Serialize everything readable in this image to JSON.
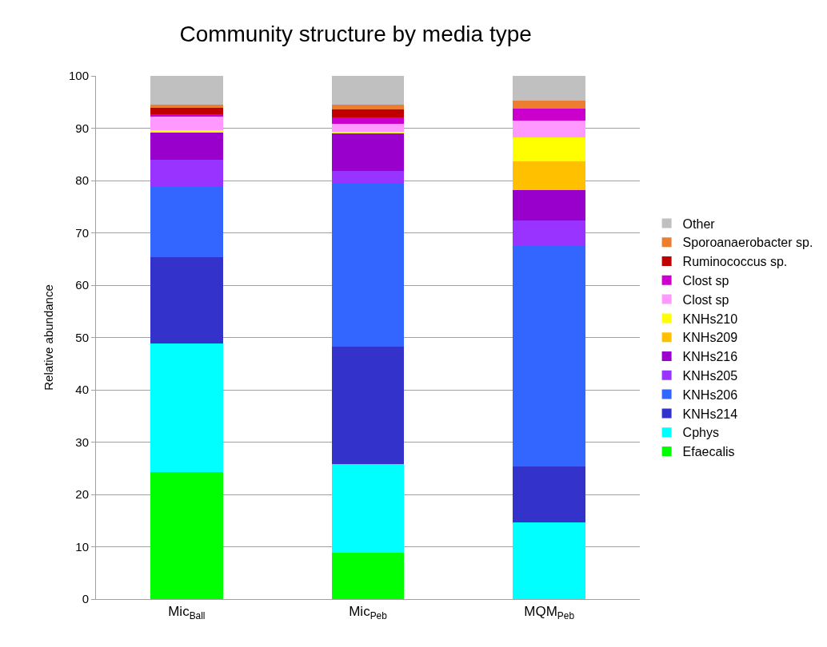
{
  "chart_data": {
    "type": "bar",
    "stacked": true,
    "title": "Community structure by media type",
    "ylabel": "Relative abundance",
    "categories": [
      "Mic$_{Ball}$",
      "Mic$_{Peb}$",
      "MQM$_{Peb}$"
    ],
    "ylim": [
      0,
      100
    ],
    "yticks": [
      0,
      10,
      20,
      30,
      40,
      50,
      60,
      70,
      80,
      90,
      100
    ],
    "grid": "y",
    "legend": "right",
    "series": [
      {
        "name": "Efaecalis",
        "color": "#00ff00",
        "values": [
          24.2,
          8.9,
          0
        ]
      },
      {
        "name": "Cphys",
        "color": "#00ffff",
        "values": [
          24.7,
          16.9,
          14.6
        ]
      },
      {
        "name": "KNHs214",
        "color": "#3333cc",
        "values": [
          16.4,
          22.5,
          10.8
        ]
      },
      {
        "name": "KNHs206",
        "color": "#3366ff",
        "values": [
          13.5,
          31.1,
          42.2
        ]
      },
      {
        "name": "KNHs205",
        "color": "#9933ff",
        "values": [
          5.1,
          2.5,
          4.8
        ]
      },
      {
        "name": "KNHs216",
        "color": "#9900cc",
        "values": [
          5.2,
          7.2,
          5.8
        ]
      },
      {
        "name": "KNHs209",
        "color": "#ffc000",
        "values": [
          0,
          0,
          5.5
        ]
      },
      {
        "name": "KNHs210",
        "color": "#ffff00",
        "values": [
          0.5,
          0.2,
          4.6
        ]
      },
      {
        "name": "Clost sp",
        "color": "#ff99ff",
        "values": [
          2.6,
          1.6,
          3.1
        ]
      },
      {
        "name": "Clost sp",
        "color": "#cc00cc",
        "values": [
          0.4,
          1.2,
          2.3
        ]
      },
      {
        "name": "Ruminococcus sp.",
        "color": "#c00000",
        "values": [
          1.3,
          1.5,
          0
        ]
      },
      {
        "name": "Sporoanaerobacter sp.",
        "color": "#ed7d31",
        "values": [
          0.6,
          0.9,
          1.5
        ]
      },
      {
        "name": "Other",
        "color": "#c0c0c0",
        "values": [
          5.5,
          5.5,
          4.8
        ]
      }
    ]
  }
}
